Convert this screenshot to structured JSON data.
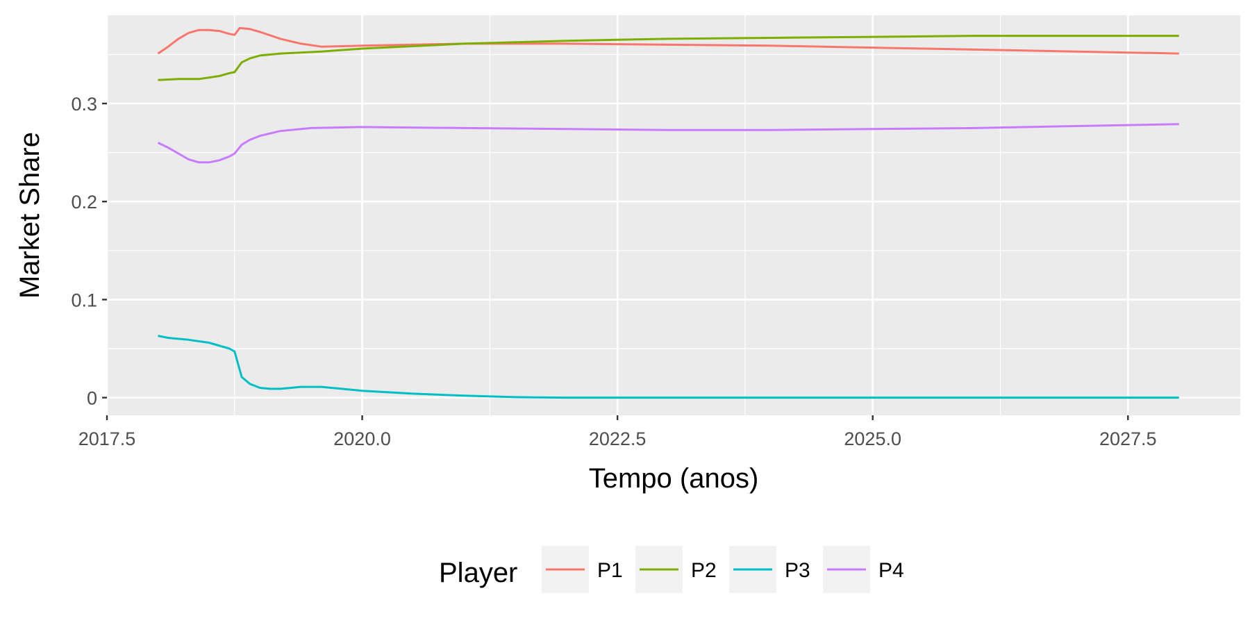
{
  "chart_data": {
    "type": "line",
    "xlabel": "Tempo (anos)",
    "ylabel": "Market Share",
    "xlim": [
      2017.5,
      2028.6
    ],
    "ylim": [
      -0.018,
      0.39
    ],
    "x_ticks": [
      2017.5,
      2020.0,
      2022.5,
      2025.0,
      2027.5
    ],
    "x_tick_labels": [
      "2017.5",
      "2020.0",
      "2022.5",
      "2025.0",
      "2027.5"
    ],
    "y_ticks": [
      0,
      0.1,
      0.2,
      0.3
    ],
    "y_tick_labels": [
      "0",
      "0.1",
      "0.2",
      "0.3"
    ],
    "grid": true,
    "legend": {
      "title": "Player",
      "position": "bottom"
    },
    "series": [
      {
        "name": "P1",
        "color": "#F8766D",
        "x": [
          2018.0,
          2018.1,
          2018.2,
          2018.3,
          2018.4,
          2018.5,
          2018.6,
          2018.7,
          2018.75,
          2018.8,
          2018.9,
          2019.0,
          2019.2,
          2019.4,
          2019.6,
          2020.0,
          2021.0,
          2022.0,
          2023.0,
          2024.0,
          2025.0,
          2026.0,
          2027.0,
          2028.0
        ],
        "values": [
          0.351,
          0.358,
          0.366,
          0.372,
          0.375,
          0.375,
          0.374,
          0.371,
          0.37,
          0.377,
          0.376,
          0.373,
          0.366,
          0.361,
          0.358,
          0.359,
          0.361,
          0.361,
          0.36,
          0.359,
          0.357,
          0.355,
          0.353,
          0.351
        ]
      },
      {
        "name": "P2",
        "color": "#7CAE00",
        "x": [
          2018.0,
          2018.2,
          2018.4,
          2018.6,
          2018.7,
          2018.75,
          2018.82,
          2018.9,
          2019.0,
          2019.2,
          2019.6,
          2020.0,
          2021.0,
          2022.0,
          2023.0,
          2024.0,
          2025.0,
          2026.0,
          2027.0,
          2028.0
        ],
        "values": [
          0.324,
          0.325,
          0.325,
          0.328,
          0.331,
          0.332,
          0.342,
          0.346,
          0.349,
          0.351,
          0.353,
          0.356,
          0.361,
          0.364,
          0.366,
          0.367,
          0.368,
          0.369,
          0.369,
          0.369
        ]
      },
      {
        "name": "P3",
        "color": "#00BFC4",
        "x": [
          2018.0,
          2018.1,
          2018.3,
          2018.5,
          2018.7,
          2018.75,
          2018.82,
          2018.9,
          2019.0,
          2019.1,
          2019.2,
          2019.4,
          2019.6,
          2019.8,
          2020.0,
          2020.5,
          2021.0,
          2021.5,
          2022.0,
          2023.0,
          2024.0,
          2025.0,
          2026.0,
          2027.0,
          2028.0
        ],
        "values": [
          0.063,
          0.061,
          0.059,
          0.056,
          0.05,
          0.047,
          0.021,
          0.014,
          0.01,
          0.009,
          0.009,
          0.011,
          0.011,
          0.009,
          0.007,
          0.004,
          0.002,
          0.0005,
          0.0,
          0.0,
          0.0,
          0.0,
          0.0,
          0.0,
          0.0
        ]
      },
      {
        "name": "P4",
        "color": "#C77CFF",
        "x": [
          2018.0,
          2018.1,
          2018.2,
          2018.3,
          2018.4,
          2018.5,
          2018.6,
          2018.7,
          2018.75,
          2018.82,
          2018.9,
          2019.0,
          2019.2,
          2019.5,
          2020.0,
          2021.0,
          2022.0,
          2023.0,
          2024.0,
          2025.0,
          2026.0,
          2027.0,
          2028.0
        ],
        "values": [
          0.26,
          0.255,
          0.249,
          0.243,
          0.24,
          0.24,
          0.242,
          0.246,
          0.249,
          0.258,
          0.263,
          0.267,
          0.272,
          0.275,
          0.276,
          0.275,
          0.274,
          0.273,
          0.273,
          0.274,
          0.275,
          0.277,
          0.279
        ]
      }
    ]
  }
}
